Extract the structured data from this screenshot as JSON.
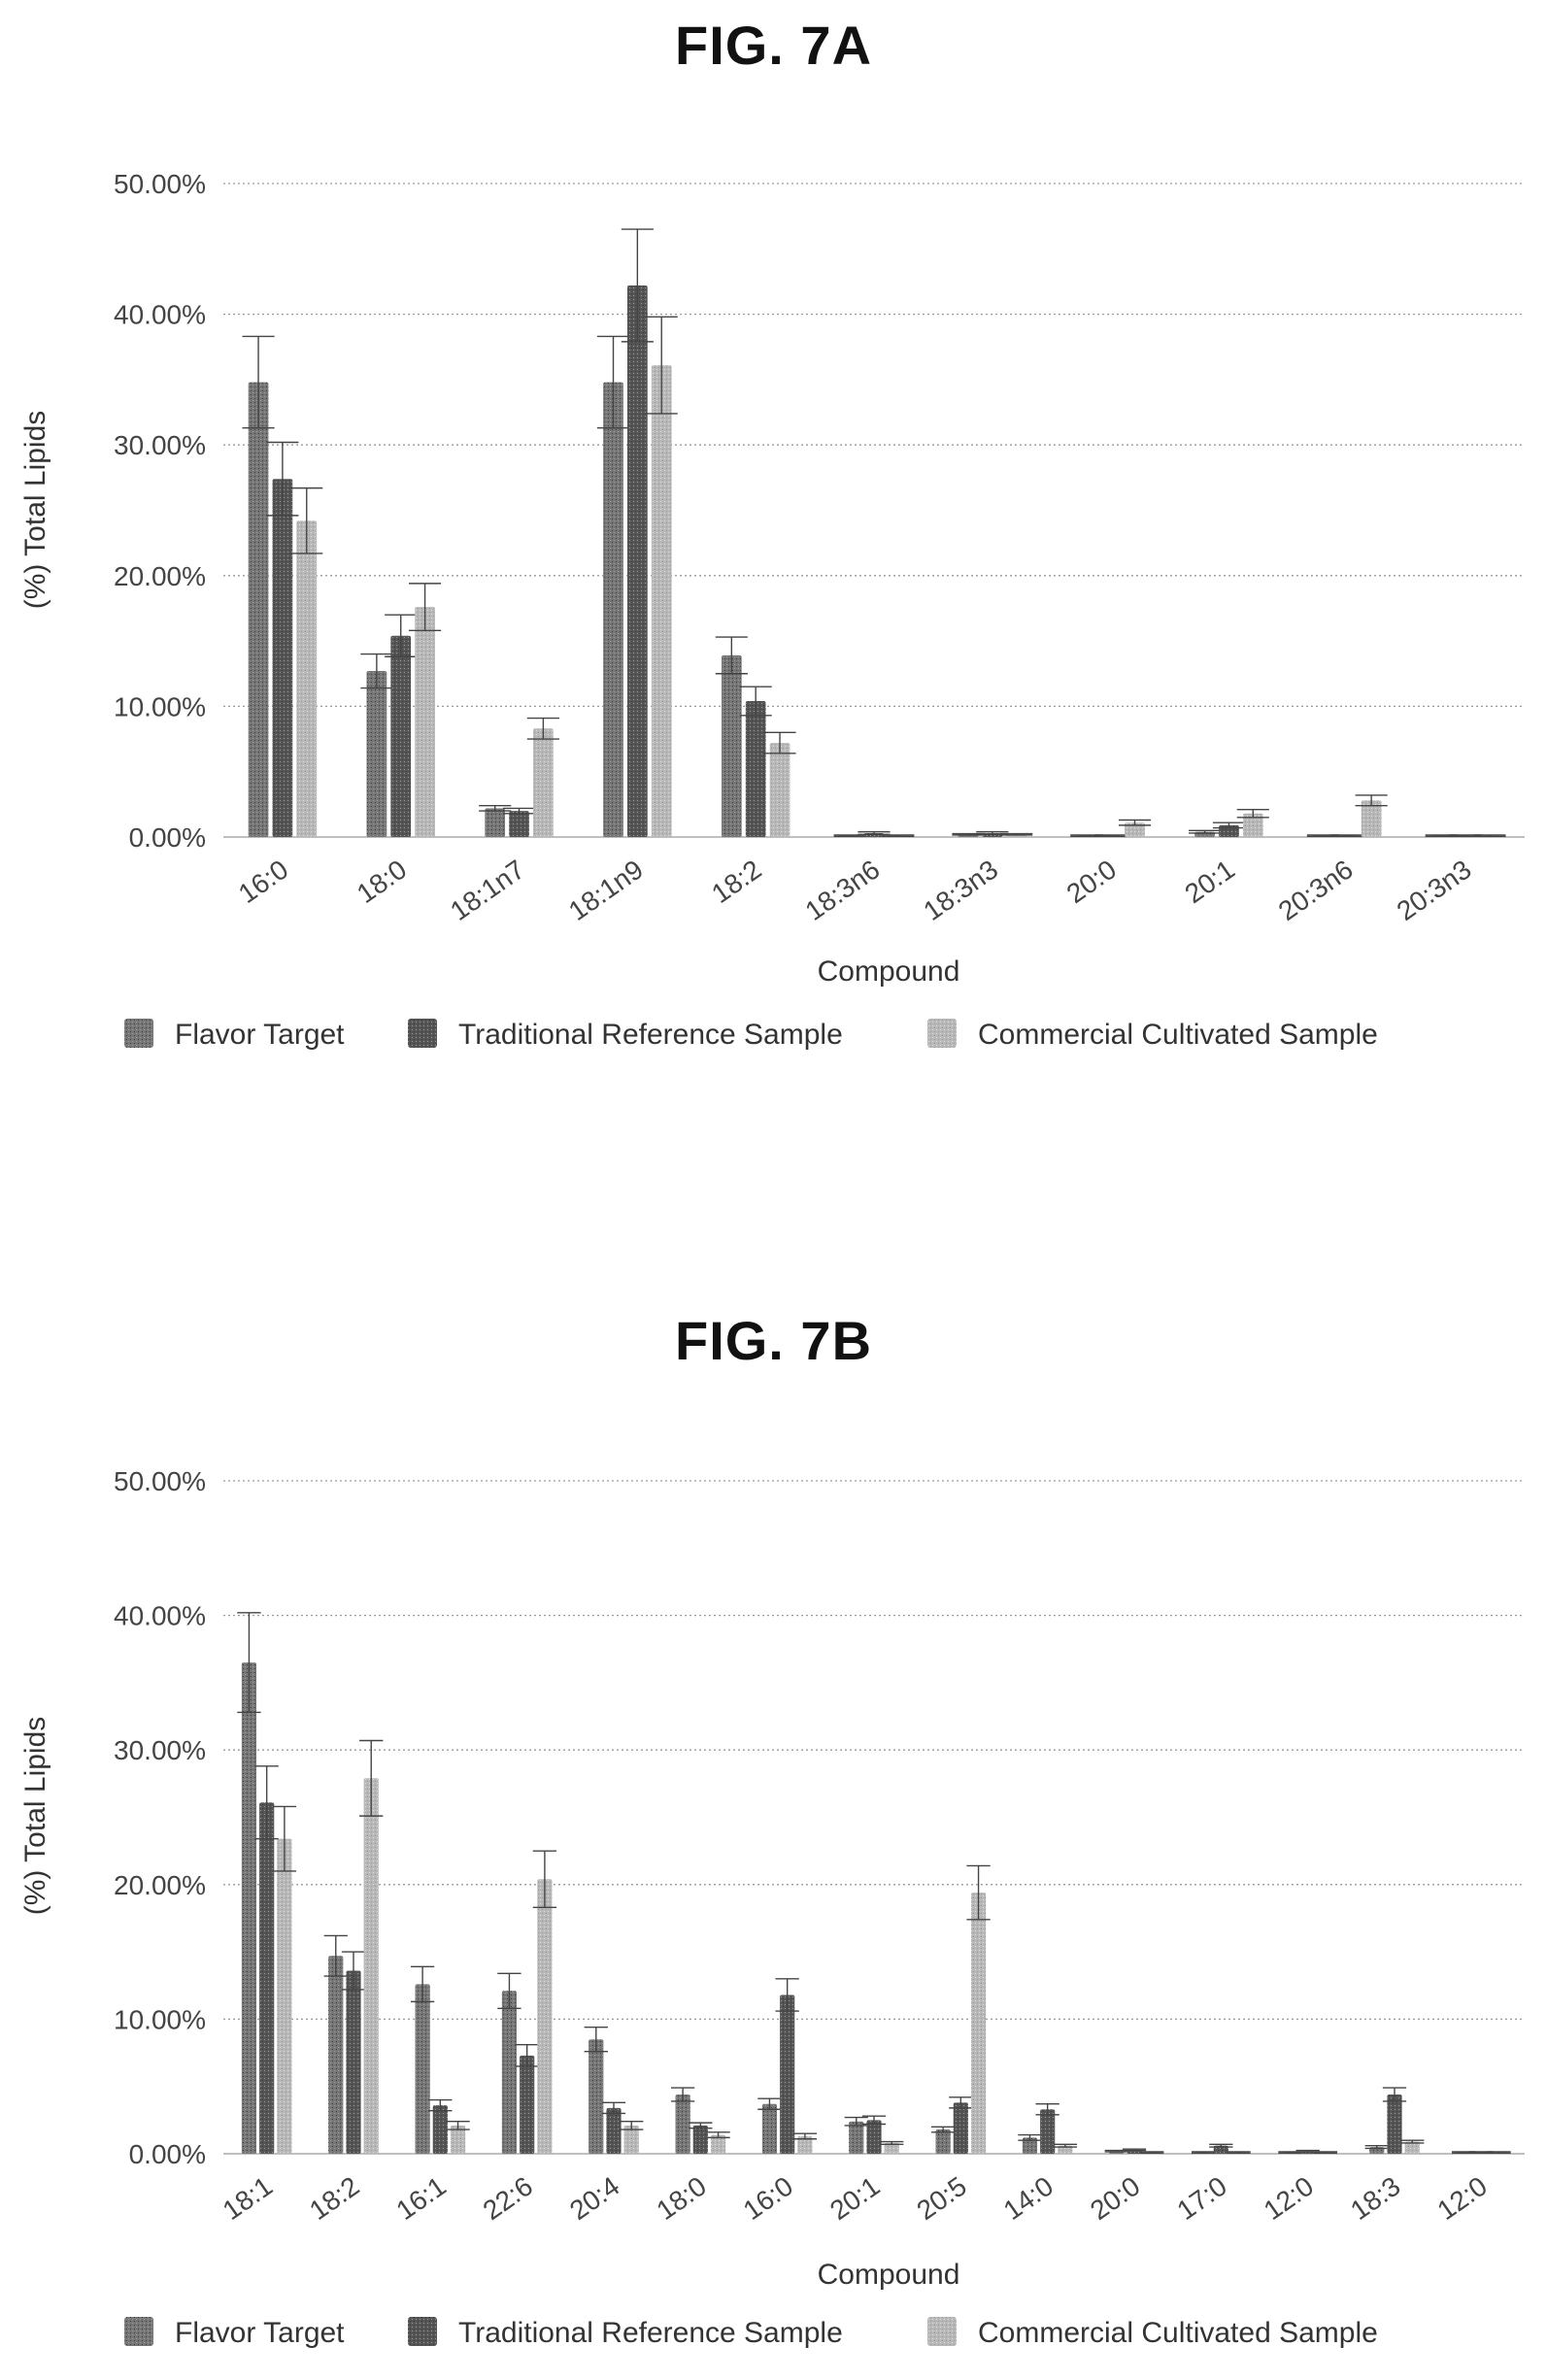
{
  "figures": [
    {
      "title": "FIG. 7A"
    },
    {
      "title": "FIG. 7B"
    }
  ],
  "legend": [
    "Flavor Target",
    "Traditional Reference Sample",
    "Commercial Cultivated Sample"
  ],
  "colors": {
    "flavor_target": "#777777",
    "traditional": "#555555",
    "commercial": "#b8b8b8",
    "grid": "#9a9a9a",
    "error_bar": "#444444"
  },
  "chart_data": [
    {
      "type": "bar",
      "title": "FIG. 7A",
      "xlabel": "Compound",
      "ylabel": "(%) Total Lipids",
      "ylim": [
        0,
        50
      ],
      "yticks": [
        "0.00%",
        "10.00%",
        "20.00%",
        "30.00%",
        "40.00%",
        "50.00%"
      ],
      "grid": true,
      "legend_position": "bottom",
      "categories": [
        "16:0",
        "18:0",
        "18:1n7",
        "18:1n9",
        "18:2",
        "18:3n6",
        "18:3n3",
        "20:0",
        "20:1",
        "20:3n6",
        "20:3n3"
      ],
      "series": [
        {
          "name": "Flavor Target",
          "values": [
            34.8,
            12.7,
            2.2,
            34.8,
            13.9,
            0.1,
            0.2,
            0.1,
            0.4,
            0.1,
            0.1
          ],
          "errors": [
            3.5,
            1.3,
            0.2,
            3.5,
            1.4,
            0.05,
            0.05,
            0.05,
            0.1,
            0.05,
            0.05
          ]
        },
        {
          "name": "Traditional Reference Sample",
          "values": [
            27.4,
            15.4,
            2.0,
            42.2,
            10.4,
            0.3,
            0.3,
            0.1,
            0.9,
            0.1,
            0.1
          ],
          "errors": [
            2.8,
            1.6,
            0.2,
            4.3,
            1.1,
            0.1,
            0.1,
            0.05,
            0.2,
            0.05,
            0.05
          ]
        },
        {
          "name": "Commercial Cultivated Sample",
          "values": [
            24.2,
            17.6,
            8.3,
            36.1,
            7.2,
            0.1,
            0.2,
            1.1,
            1.8,
            2.8,
            0.1
          ],
          "errors": [
            2.5,
            1.8,
            0.8,
            3.7,
            0.8,
            0.05,
            0.05,
            0.2,
            0.3,
            0.4,
            0.05
          ]
        }
      ]
    },
    {
      "type": "bar",
      "title": "FIG. 7B",
      "xlabel": "Compound",
      "ylabel": "(%) Total Lipids",
      "ylim": [
        0,
        50
      ],
      "yticks": [
        "0.00%",
        "10.00%",
        "20.00%",
        "30.00%",
        "40.00%",
        "50.00%"
      ],
      "grid": true,
      "legend_position": "bottom",
      "categories": [
        "18:1",
        "18:2",
        "16:1",
        "22:6",
        "20:4",
        "18:0",
        "16:0",
        "20:1",
        "20:5",
        "14:0",
        "20:0",
        "17:0",
        "12:0",
        "18:3",
        "12:0"
      ],
      "series": [
        {
          "name": "Flavor Target",
          "values": [
            36.5,
            14.7,
            12.6,
            12.1,
            8.5,
            4.4,
            3.7,
            2.4,
            1.8,
            1.2,
            0.2,
            0.1,
            0.1,
            0.5,
            0.1
          ],
          "errors": [
            3.7,
            1.5,
            1.3,
            1.3,
            0.9,
            0.5,
            0.4,
            0.3,
            0.2,
            0.2,
            0.05,
            0.05,
            0.05,
            0.1,
            0.05
          ]
        },
        {
          "name": "Traditional Reference Sample",
          "values": [
            26.1,
            13.6,
            3.6,
            7.3,
            3.4,
            2.1,
            11.8,
            2.5,
            3.8,
            3.3,
            0.3,
            0.6,
            0.2,
            4.4,
            0.1
          ],
          "errors": [
            2.7,
            1.4,
            0.4,
            0.8,
            0.4,
            0.2,
            1.2,
            0.3,
            0.4,
            0.4,
            0.05,
            0.1,
            0.05,
            0.5,
            0.05
          ]
        },
        {
          "name": "Commercial Cultivated Sample",
          "values": [
            23.4,
            27.9,
            2.1,
            20.4,
            2.1,
            1.4,
            1.3,
            0.8,
            19.4,
            0.6,
            0.1,
            0.1,
            0.1,
            0.9,
            0.1
          ],
          "errors": [
            2.4,
            2.8,
            0.3,
            2.1,
            0.3,
            0.2,
            0.2,
            0.1,
            2.0,
            0.1,
            0.05,
            0.05,
            0.05,
            0.1,
            0.05
          ]
        }
      ]
    }
  ]
}
